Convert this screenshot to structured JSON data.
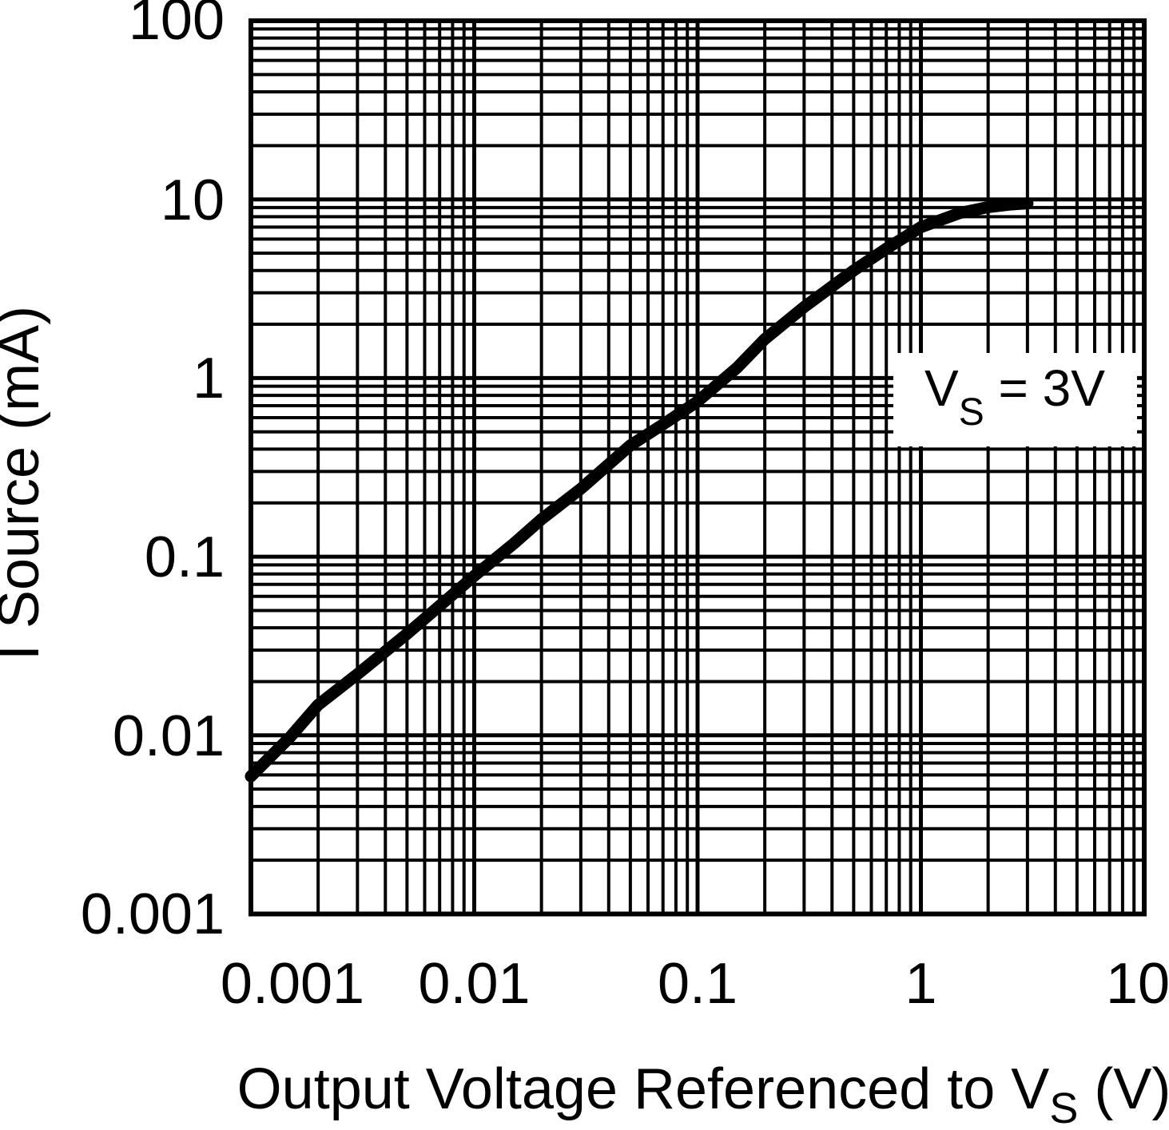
{
  "chart_data": {
    "type": "line",
    "title": "",
    "xlabel": "Output Voltage Referenced to VS (V)",
    "ylabel": "I Source (mA)",
    "xlabel_parts": {
      "prefix": "Output Voltage Referenced to V",
      "sub": "S",
      "suffix": " (V)"
    },
    "x_scale": "log",
    "y_scale": "log",
    "xlim": [
      0.001,
      10
    ],
    "ylim": [
      0.001,
      100
    ],
    "x_tick_labels": [
      "0.001",
      "0.01",
      "0.1",
      "1",
      "10"
    ],
    "y_tick_labels": [
      "100",
      "10",
      "1",
      "0.1",
      "0.01",
      "0.001"
    ],
    "grid": "log minor and major gridlines on both axes",
    "annotation": {
      "text": "VS = 3V",
      "prefix": "V",
      "sub": "S",
      "suffix": "  =  3V"
    },
    "series": [
      {
        "name": "VS = 3V",
        "x": [
          0.001,
          0.0015,
          0.002,
          0.003,
          0.005,
          0.0076,
          0.01,
          0.015,
          0.02,
          0.03,
          0.05,
          0.07,
          0.1,
          0.15,
          0.2,
          0.3,
          0.5,
          0.7,
          1.0,
          1.5,
          2.0,
          2.5,
          3.0
        ],
        "y": [
          0.0059,
          0.0098,
          0.0148,
          0.022,
          0.037,
          0.058,
          0.078,
          0.118,
          0.162,
          0.24,
          0.42,
          0.55,
          0.74,
          1.14,
          1.65,
          2.5,
          4.0,
          5.3,
          7.0,
          8.4,
          9.05,
          9.35,
          9.5
        ]
      }
    ],
    "colors": {
      "line": "#000000",
      "background": "#ffffff"
    }
  }
}
